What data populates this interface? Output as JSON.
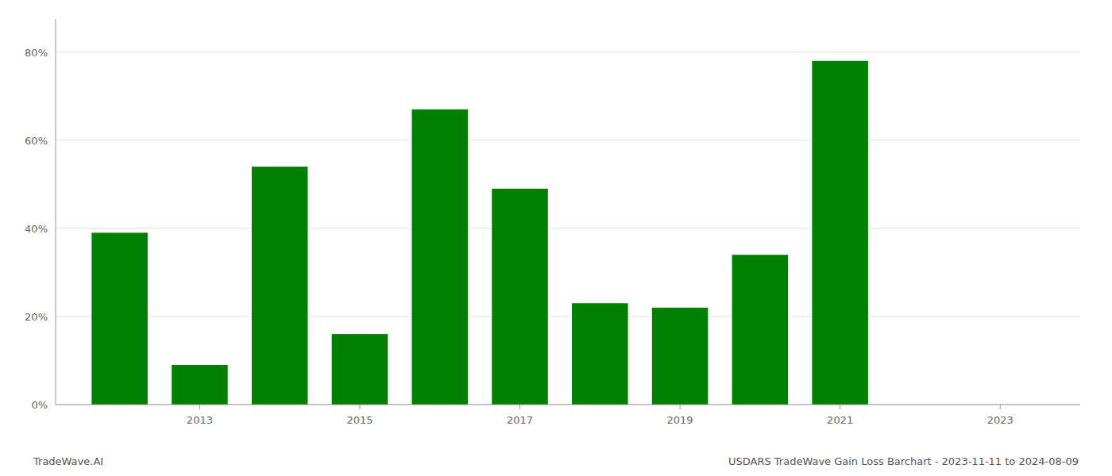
{
  "chart_data": {
    "type": "bar",
    "title": "USDARS TradeWave Gain Loss Barchart - 2023-11-11 to 2024-08-09",
    "annotations": [
      "TradeWave.AI"
    ],
    "x": [
      2012,
      2013,
      2014,
      2015,
      2016,
      2017,
      2018,
      2019,
      2020,
      2021
    ],
    "values": [
      0.39,
      0.09,
      0.54,
      0.16,
      0.67,
      0.49,
      0.23,
      0.22,
      0.34,
      0.78
    ],
    "color": "#008000",
    "xlim": [
      2011.2,
      2024.0
    ],
    "xticks": [
      2013,
      2015,
      2017,
      2019,
      2021,
      2023
    ],
    "ylim": [
      0,
      0.875
    ],
    "yticks": [
      {
        "value": 0,
        "label": "0%"
      },
      {
        "value": 0.2,
        "label": "20%"
      },
      {
        "value": 0.4,
        "label": "40%"
      },
      {
        "value": 0.6,
        "label": "60%"
      },
      {
        "value": 0.8,
        "label": "80%"
      }
    ],
    "grid": true
  }
}
